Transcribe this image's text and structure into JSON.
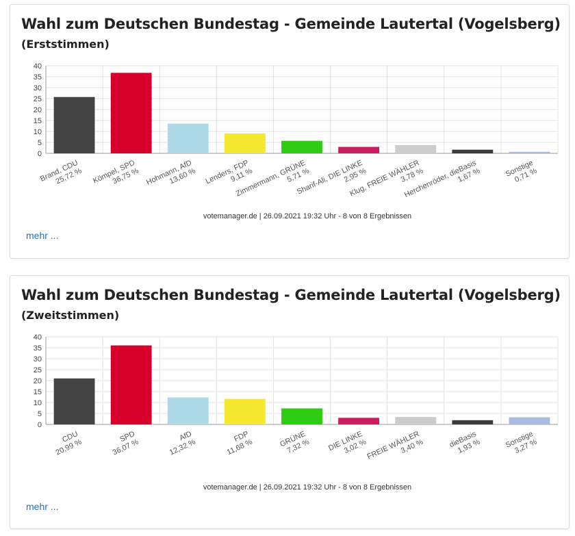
{
  "cards": [
    {
      "title": "Wahl zum Deutschen Bundestag - Gemeinde Lautertal (Vogelsberg)",
      "subtitle": "(Erststimmen)",
      "source": "votemanager.de | 26.09.2021 19:32 Uhr - 8 von 8 Ergebnissen",
      "more": "mehr ..."
    },
    {
      "title": "Wahl zum Deutschen Bundestag - Gemeinde Lautertal (Vogelsberg)",
      "subtitle": "(Zweitstimmen)",
      "source": "votemanager.de | 26.09.2021 19:32 Uhr - 8 von 8 Ergebnissen",
      "more": "mehr ..."
    }
  ],
  "chart_data": [
    {
      "type": "bar",
      "title": "Wahl zum Deutschen Bundestag - Gemeinde Lautertal (Vogelsberg)",
      "subtitle": "(Erststimmen)",
      "ylim": [
        0,
        40
      ],
      "yticks": [
        0,
        5,
        10,
        15,
        20,
        25,
        30,
        35,
        40
      ],
      "grid": true,
      "categories": [
        "Brand, CDU",
        "Kömpel, SPD",
        "Hohmann, AfD",
        "Lenders, FDP",
        "Zimmermann, GRÜNE",
        "Sharif-Ali, DIE LINKE",
        "Klug, FREIE WÄHLER",
        "Herchenröder, dieBasis",
        "Sonstige"
      ],
      "values": [
        25.72,
        36.75,
        13.6,
        9.11,
        5.71,
        2.95,
        3.78,
        1.67,
        0.71
      ],
      "value_labels": [
        "25,72 %",
        "36,75 %",
        "13,60 %",
        "9,11 %",
        "5,71 %",
        "2,95 %",
        "3,78 %",
        "1,67 %",
        "0,71 %"
      ],
      "colors": [
        "#444444",
        "#d7002a",
        "#add8e6",
        "#f5e92f",
        "#2fcc14",
        "#cc1b5e",
        "#cccccc",
        "#3c3c3c",
        "#aabbe0"
      ]
    },
    {
      "type": "bar",
      "title": "Wahl zum Deutschen Bundestag - Gemeinde Lautertal (Vogelsberg)",
      "subtitle": "(Zweitstimmen)",
      "ylim": [
        0,
        40
      ],
      "yticks": [
        0,
        5,
        10,
        15,
        20,
        25,
        30,
        35,
        40
      ],
      "grid": true,
      "categories": [
        "CDU",
        "SPD",
        "AfD",
        "FDP",
        "GRÜNE",
        "DIE LINKE",
        "FREIE WÄHLER",
        "dieBasis",
        "Sonstige"
      ],
      "values": [
        20.99,
        36.07,
        12.32,
        11.68,
        7.32,
        3.02,
        3.4,
        1.93,
        3.27
      ],
      "value_labels": [
        "20,99 %",
        "36,07 %",
        "12,32 %",
        "11,68 %",
        "7,32 %",
        "3,02 %",
        "3,40 %",
        "1,93 %",
        "3,27 %"
      ],
      "colors": [
        "#444444",
        "#d7002a",
        "#add8e6",
        "#f5e92f",
        "#2fcc14",
        "#cc1b5e",
        "#cccccc",
        "#3c3c3c",
        "#aabbe0"
      ]
    }
  ]
}
